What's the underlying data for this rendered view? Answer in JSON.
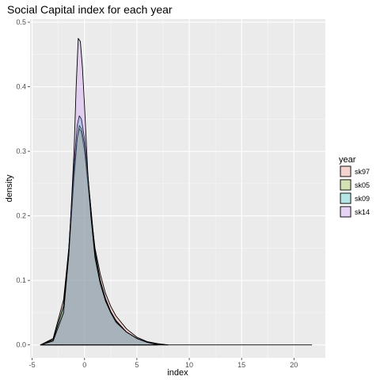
{
  "chart_data": {
    "type": "area",
    "title": "Social Capital index for each year",
    "xlabel": "index",
    "ylabel": "density",
    "xlim": [
      -5.2,
      23
    ],
    "ylim": [
      -0.02,
      0.505
    ],
    "x_ticks": [
      -5,
      0,
      5,
      10,
      15,
      20
    ],
    "y_ticks": [
      0.0,
      0.1,
      0.2,
      0.3,
      0.4,
      0.5
    ],
    "x_tick_labels": [
      "-5",
      "0",
      "5",
      "10",
      "15",
      "20"
    ],
    "y_tick_labels": [
      "0.0",
      "0.1",
      "0.2",
      "0.3",
      "0.4",
      "0.5"
    ],
    "grid": true,
    "legend": {
      "title": "year",
      "position": "right"
    },
    "series": [
      {
        "name": "sk97",
        "fill": "#F8766D",
        "x": [
          -4.2,
          -3.0,
          -2.0,
          -1.5,
          -1.0,
          -0.7,
          -0.5,
          -0.3,
          0.0,
          0.5,
          1.0,
          1.5,
          2.0,
          2.5,
          3.0,
          4.0,
          5.0,
          6.0,
          7.0,
          8.0
        ],
        "y": [
          0.0,
          0.01,
          0.07,
          0.15,
          0.27,
          0.32,
          0.335,
          0.33,
          0.3,
          0.22,
          0.15,
          0.11,
          0.08,
          0.06,
          0.045,
          0.025,
          0.012,
          0.005,
          0.002,
          0.0
        ]
      },
      {
        "name": "sk05",
        "fill": "#7CAE00",
        "x": [
          -4.2,
          -3.0,
          -2.0,
          -1.5,
          -1.0,
          -0.7,
          -0.5,
          -0.3,
          0.0,
          0.5,
          1.0,
          1.5,
          2.0,
          2.5,
          3.0,
          4.0,
          5.0,
          6.0,
          7.0
        ],
        "y": [
          0.0,
          0.008,
          0.06,
          0.14,
          0.26,
          0.32,
          0.34,
          0.335,
          0.31,
          0.23,
          0.14,
          0.1,
          0.07,
          0.05,
          0.035,
          0.02,
          0.01,
          0.004,
          0.0
        ]
      },
      {
        "name": "sk09",
        "fill": "#00BFC4",
        "x": [
          -4.2,
          -3.0,
          -2.0,
          -1.5,
          -1.0,
          -0.7,
          -0.5,
          -0.3,
          0.0,
          0.5,
          1.0,
          1.5,
          2.0,
          2.5,
          3.0,
          4.0,
          5.0,
          6.0,
          7.0
        ],
        "y": [
          0.0,
          0.008,
          0.06,
          0.15,
          0.28,
          0.34,
          0.355,
          0.35,
          0.32,
          0.23,
          0.145,
          0.1,
          0.072,
          0.052,
          0.038,
          0.02,
          0.01,
          0.004,
          0.0
        ]
      },
      {
        "name": "sk14",
        "fill": "#C77CFF",
        "x": [
          -4.2,
          -3.0,
          -2.0,
          -1.5,
          -1.0,
          -0.8,
          -0.6,
          -0.4,
          -0.2,
          0.0,
          0.3,
          0.6,
          1.0,
          1.5,
          2.0,
          2.5,
          3.0,
          4.0,
          5.0,
          6.0,
          7.0,
          8.0,
          10.0,
          15.0,
          21.7
        ],
        "y": [
          0.0,
          0.006,
          0.05,
          0.14,
          0.3,
          0.4,
          0.475,
          0.47,
          0.43,
          0.37,
          0.27,
          0.2,
          0.135,
          0.095,
          0.068,
          0.05,
          0.036,
          0.02,
          0.01,
          0.004,
          0.001,
          0.0,
          0.0,
          0.0,
          0.0
        ]
      }
    ]
  }
}
